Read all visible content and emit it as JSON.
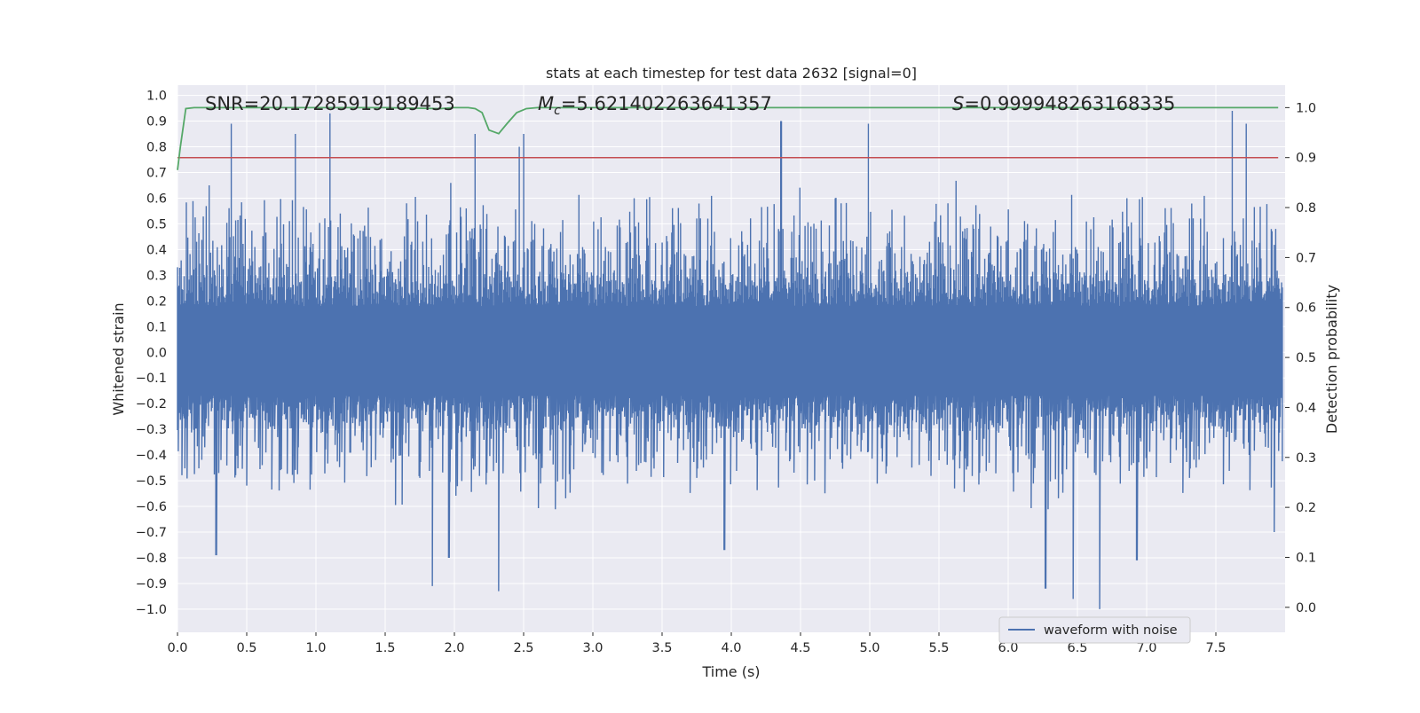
{
  "chart_data": {
    "type": "line",
    "title": "stats at each timestep for test data 2632 [signal=0]",
    "xlabel": "Time (s)",
    "ylabel_left": "Whitened strain",
    "ylabel_right": "Detection probability",
    "xlim": [
      0.0,
      8.0
    ],
    "ylim_left": [
      -1.09,
      1.04
    ],
    "ylim_right": [
      -0.05,
      1.045
    ],
    "x_ticks": [
      0.0,
      0.5,
      1.0,
      1.5,
      2.0,
      2.5,
      3.0,
      3.5,
      4.0,
      4.5,
      5.0,
      5.5,
      6.0,
      6.5,
      7.0,
      7.5
    ],
    "x_tick_labels": [
      "0.0",
      "0.5",
      "1.0",
      "1.5",
      "2.0",
      "2.5",
      "3.0",
      "3.5",
      "4.0",
      "4.5",
      "5.0",
      "5.5",
      "6.0",
      "6.5",
      "7.0",
      "7.5"
    ],
    "y_left_ticks": [
      1.0,
      0.9,
      0.8,
      0.7,
      0.6,
      0.5,
      0.4,
      0.3,
      0.2,
      0.1,
      0.0,
      -0.1,
      -0.2,
      -0.3,
      -0.4,
      -0.5,
      -0.6,
      -0.7,
      -0.8,
      -0.9,
      -1.0
    ],
    "y_left_tick_labels": [
      "1.0",
      "0.9",
      "0.8",
      "0.7",
      "0.6",
      "0.5",
      "0.4",
      "0.3",
      "0.2",
      "0.1",
      "0.0",
      "−0.1",
      "−0.2",
      "−0.3",
      "−0.4",
      "−0.5",
      "−0.6",
      "−0.7",
      "−0.8",
      "−0.9",
      "−1.0"
    ],
    "y_right_ticks": [
      1.0,
      0.9,
      0.8,
      0.7,
      0.6,
      0.5,
      0.4,
      0.3,
      0.2,
      0.1,
      0.0
    ],
    "y_right_tick_labels": [
      "1.0",
      "0.9",
      "0.8",
      "0.7",
      "0.6",
      "0.5",
      "0.4",
      "0.3",
      "0.2",
      "0.1",
      "0.0"
    ],
    "annotations": {
      "snr": "SNR=20.17285919189453",
      "mc_symbol": "M",
      "mc_sub": "c",
      "mc_value": "=5.621402263641357",
      "s_symbol": "S",
      "s_value": "=0.999948263168335"
    },
    "threshold": {
      "value": 0.9,
      "axis": "right",
      "color": "#c44e52"
    },
    "series": [
      {
        "name": "waveform with noise",
        "axis": "left",
        "color": "#4c72b0",
        "style": "dense noise",
        "envelope_typical": [
          -0.4,
          0.45
        ],
        "peaks": [
          {
            "x": 0.39,
            "y": 0.89
          },
          {
            "x": 0.85,
            "y": 0.85
          },
          {
            "x": 1.1,
            "y": 0.93
          },
          {
            "x": 2.15,
            "y": 0.85
          },
          {
            "x": 2.47,
            "y": 0.8
          },
          {
            "x": 2.5,
            "y": 0.85
          },
          {
            "x": 4.36,
            "y": 0.9
          },
          {
            "x": 4.99,
            "y": 0.89
          },
          {
            "x": 7.62,
            "y": 0.94
          },
          {
            "x": 7.72,
            "y": 0.89
          }
        ],
        "troughs": [
          {
            "x": 0.28,
            "y": -0.79
          },
          {
            "x": 1.84,
            "y": -0.91
          },
          {
            "x": 1.96,
            "y": -0.8
          },
          {
            "x": 2.32,
            "y": -0.93
          },
          {
            "x": 3.95,
            "y": -0.77
          },
          {
            "x": 6.27,
            "y": -0.92
          },
          {
            "x": 6.47,
            "y": -0.96
          },
          {
            "x": 6.66,
            "y": -1.0
          },
          {
            "x": 6.93,
            "y": -0.81
          },
          {
            "x": 7.92,
            "y": -0.7
          }
        ]
      },
      {
        "name": "detection probability",
        "axis": "right",
        "color": "#55a868",
        "x": [
          0.0,
          0.02,
          0.06,
          0.12,
          0.2,
          0.5,
          1.0,
          1.5,
          1.9,
          2.0,
          2.1,
          2.15,
          2.2,
          2.25,
          2.32,
          2.38,
          2.45,
          2.52,
          2.6,
          3.0,
          4.0,
          5.0,
          6.0,
          7.0,
          7.95
        ],
        "values": [
          0.875,
          0.92,
          0.998,
          1.0,
          1.0,
          1.0,
          1.0,
          1.0,
          0.998,
          1.0,
          1.0,
          0.998,
          0.99,
          0.955,
          0.948,
          0.968,
          0.99,
          0.998,
          1.0,
          1.0,
          1.0,
          1.0,
          1.0,
          1.0,
          1.0
        ]
      }
    ],
    "legend": {
      "position": "bottom-right",
      "label": "waveform with noise"
    }
  }
}
